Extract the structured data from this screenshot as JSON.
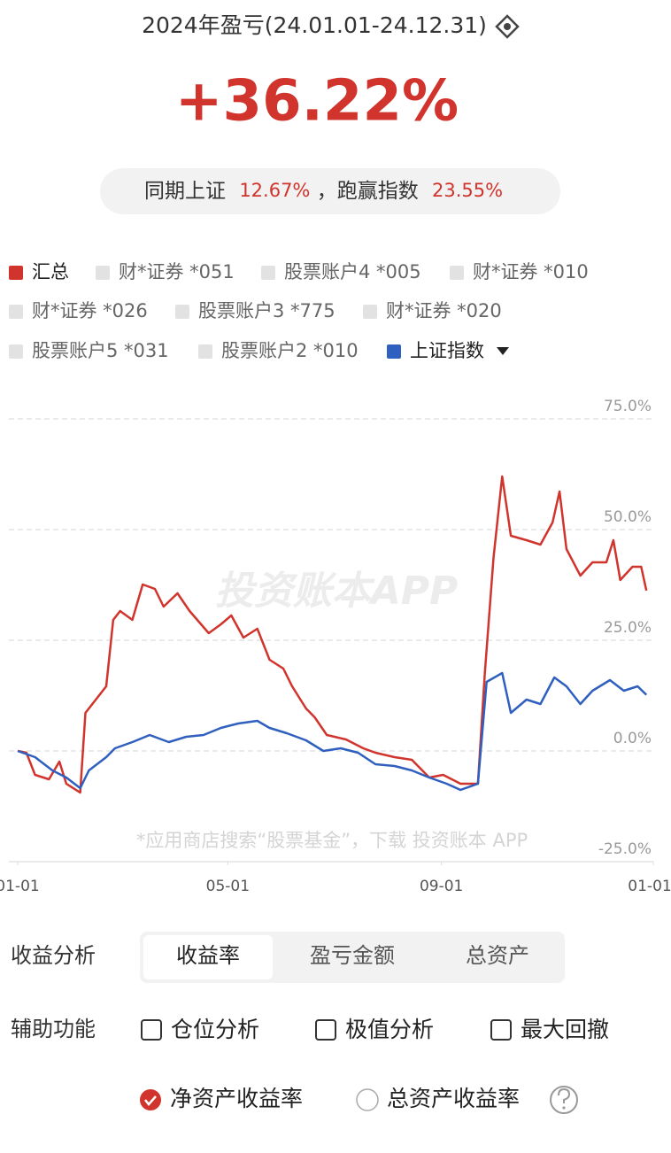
{
  "header": {
    "title": "2024年盈亏(24.01.01-24.12.31)",
    "return": "+36.22%",
    "benchmark_label": "同期上证",
    "benchmark_value": "12.67%",
    "excess_label": "，跑赢指数",
    "excess_value": "23.55%"
  },
  "chart_data": {
    "type": "line",
    "series": [
      {
        "name": "汇总",
        "color": "#d0342c",
        "x": [
          0,
          5,
          10,
          18,
          24,
          28,
          36,
          39,
          51,
          55,
          59,
          66,
          72,
          79,
          84,
          92,
          99,
          110,
          117,
          123,
          130,
          138,
          145,
          153,
          158,
          166,
          171,
          178,
          189,
          199,
          206,
          217,
          227,
          237,
          245,
          255,
          265,
          269,
          274,
          279,
          284,
          293,
          301,
          308,
          312,
          316,
          324,
          331,
          339,
          343,
          347,
          354,
          359,
          362
        ],
        "values": [
          0,
          -0.4,
          -5.4,
          -6.4,
          -2.4,
          -7.4,
          -9.4,
          8.6,
          14.6,
          29.6,
          31.6,
          29.6,
          37.6,
          36.6,
          32.6,
          35.6,
          31.6,
          26.6,
          28.6,
          30.6,
          25.6,
          27.6,
          20.6,
          18.6,
          14.6,
          9.6,
          7.6,
          3.6,
          2.6,
          0.6,
          -0.4,
          -1.4,
          -2,
          -6,
          -5.4,
          -7.4,
          -7.4,
          17.6,
          43.6,
          62,
          48.6,
          47.6,
          46.6,
          51.6,
          58.6,
          45.6,
          39.6,
          42.6,
          42.6,
          47.6,
          38.6,
          41.6,
          41.6,
          36.22
        ]
      },
      {
        "name": "上证指数",
        "color": "#2f5fbf",
        "x": [
          0,
          10,
          20,
          28,
          36,
          41,
          51,
          56,
          66,
          76,
          87,
          97,
          107,
          117,
          127,
          138,
          145,
          155,
          166,
          176,
          186,
          196,
          206,
          217,
          227,
          237,
          247,
          255,
          265,
          270,
          279,
          284,
          293,
          301,
          309,
          316,
          324,
          331,
          341,
          349,
          357,
          362
        ],
        "values": [
          0,
          -1.4,
          -4.4,
          -6,
          -8.4,
          -4.4,
          -1.4,
          0.6,
          2,
          3.6,
          2,
          3.2,
          3.6,
          5.2,
          6.2,
          6.8,
          5.2,
          4,
          2.4,
          0,
          0.6,
          -0.4,
          -3,
          -3.4,
          -4.4,
          -6,
          -7.4,
          -8.8,
          -7.4,
          15.6,
          17.6,
          8.6,
          11.6,
          10.6,
          16.6,
          14.6,
          10.6,
          13.6,
          16,
          13.6,
          14.6,
          12.67
        ]
      }
    ],
    "hidden_series": [
      "财*证券 *051",
      "股票账户4 *005",
      "财*证券 *010",
      "财*证券 *026",
      "股票账户3 *775",
      "财*证券 *020",
      "股票账户5 *031",
      "股票账户2 *010"
    ],
    "hidden_color": "#e2e2e2",
    "xlim": [
      0,
      366
    ],
    "xticks": [
      {
        "value": 0,
        "label": "01-01"
      },
      {
        "value": 121,
        "label": "05-01"
      },
      {
        "value": 244,
        "label": "09-01"
      },
      {
        "value": 366,
        "label": "01-01"
      }
    ],
    "ylim": [
      -25,
      75
    ],
    "yticks": [
      {
        "value": -25,
        "label": "-25.0%"
      },
      {
        "value": 0,
        "label": "0.0%"
      },
      {
        "value": 25,
        "label": "25.0%"
      },
      {
        "value": 50,
        "label": "50.0%"
      },
      {
        "value": 75,
        "label": "75.0%"
      }
    ],
    "grid": true,
    "watermark": "投资账本APP",
    "footnote": "*应用商店搜索“股票基金”，下载 投资账本 APP"
  },
  "controls": {
    "analysis": {
      "label": "收益分析",
      "tabs": [
        "收益率",
        "盈亏金额",
        "总资产"
      ],
      "selected": 0
    },
    "aux": {
      "label": "辅助功能",
      "options": [
        "仓位分析",
        "极值分析",
        "最大回撤"
      ]
    },
    "basis": {
      "options": [
        "净资产收益率",
        "总资产收益率"
      ],
      "selected": 0
    }
  }
}
